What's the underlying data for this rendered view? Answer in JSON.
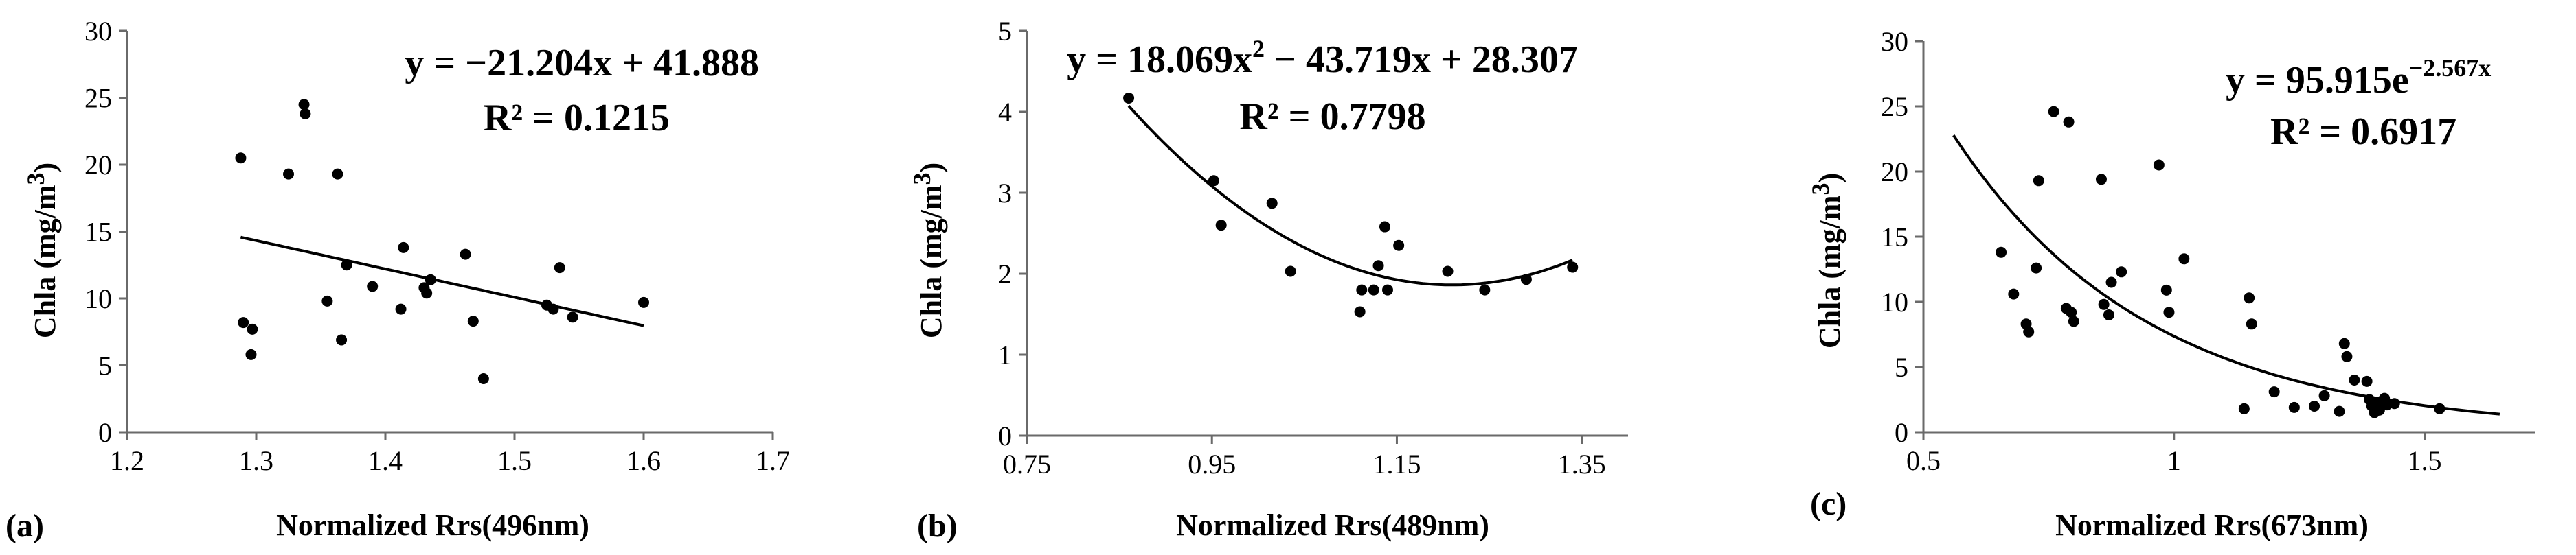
{
  "chart_data": [
    {
      "type": "scatter",
      "panel_label": "(a)",
      "xlabel": "Normalized Rrs(496nm)",
      "ylabel": "Chla (mg/m",
      "ylabel_sup": "3",
      "ylabel_end": ")",
      "xlim": [
        1.2,
        1.7
      ],
      "ylim": [
        0,
        30
      ],
      "xticks": [
        1.2,
        1.3,
        1.4,
        1.5,
        1.6,
        1.7
      ],
      "xtick_labels": [
        "1.2",
        "1.3",
        "1.4",
        "1.5",
        "1.6",
        "1.7"
      ],
      "yticks": [
        0,
        5,
        10,
        15,
        20,
        25,
        30
      ],
      "ytick_labels": [
        "0",
        "5",
        "10",
        "15",
        "20",
        "25",
        "30"
      ],
      "equation_main": "y = −21.204x + 41.888",
      "r2_text": "R² = 0.1215",
      "fit": {
        "model": "linear",
        "a": -21.204,
        "b": 41.888,
        "x_range": [
          1.288,
          1.6
        ]
      },
      "points": [
        [
          1.288,
          20.5
        ],
        [
          1.29,
          8.2
        ],
        [
          1.296,
          5.8
        ],
        [
          1.297,
          7.7
        ],
        [
          1.325,
          19.3
        ],
        [
          1.337,
          24.5
        ],
        [
          1.338,
          23.8
        ],
        [
          1.355,
          9.8
        ],
        [
          1.363,
          19.3
        ],
        [
          1.366,
          6.9
        ],
        [
          1.37,
          12.5
        ],
        [
          1.39,
          10.9
        ],
        [
          1.412,
          9.2
        ],
        [
          1.414,
          13.8
        ],
        [
          1.43,
          10.8
        ],
        [
          1.432,
          10.4
        ],
        [
          1.435,
          11.4
        ],
        [
          1.462,
          13.3
        ],
        [
          1.468,
          8.3
        ],
        [
          1.476,
          4.0
        ],
        [
          1.525,
          9.5
        ],
        [
          1.53,
          9.2
        ],
        [
          1.535,
          12.3
        ],
        [
          1.545,
          8.6
        ],
        [
          1.6,
          9.7
        ]
      ]
    },
    {
      "type": "scatter",
      "panel_label": "(b)",
      "xlabel": "Normalized Rrs(489nm)",
      "ylabel": "Chla (mg/m",
      "ylabel_sup": "3",
      "ylabel_end": ")",
      "xlim": [
        0.75,
        1.4
      ],
      "ylim": [
        0,
        5
      ],
      "xticks": [
        0.75,
        0.95,
        1.15,
        1.35
      ],
      "xtick_labels": [
        "0.75",
        "0.95",
        "1.15",
        "1.35"
      ],
      "yticks": [
        0,
        1,
        2,
        3,
        4,
        5
      ],
      "ytick_labels": [
        "0",
        "1",
        "2",
        "3",
        "4",
        "5"
      ],
      "equation_main": "y = 18.069x",
      "equation_sup": "2",
      "equation_rest": " − 43.719x + 28.307",
      "r2_text": "R² = 0.7798",
      "fit": {
        "model": "quadratic",
        "a": 18.069,
        "b": -43.719,
        "c": 28.307,
        "x_range": [
          0.86,
          1.34
        ]
      },
      "points": [
        [
          0.86,
          4.17
        ],
        [
          0.952,
          3.15
        ],
        [
          0.96,
          2.6
        ],
        [
          1.015,
          2.87
        ],
        [
          1.035,
          2.03
        ],
        [
          1.11,
          1.53
        ],
        [
          1.112,
          1.8
        ],
        [
          1.125,
          1.8
        ],
        [
          1.13,
          2.1
        ],
        [
          1.137,
          2.58
        ],
        [
          1.14,
          1.8
        ],
        [
          1.152,
          2.35
        ],
        [
          1.205,
          2.03
        ],
        [
          1.245,
          1.8
        ],
        [
          1.29,
          1.93
        ],
        [
          1.34,
          2.08
        ]
      ]
    },
    {
      "type": "scatter",
      "panel_label": "(c)",
      "xlabel": "Normalized Rrs(673nm)",
      "ylabel": "Chla (mg/m",
      "ylabel_sup": "3",
      "ylabel_end": ")",
      "xlim": [
        0.5,
        1.72
      ],
      "ylim": [
        0,
        30
      ],
      "xticks": [
        0.5,
        1.0,
        1.5
      ],
      "xtick_labels": [
        "0.5",
        "1",
        "1.5"
      ],
      "yticks": [
        0,
        5,
        10,
        15,
        20,
        25,
        30
      ],
      "ytick_labels": [
        "0",
        "5",
        "10",
        "15",
        "20",
        "25",
        "30"
      ],
      "equation_main": "y = 95.915e",
      "equation_sup": "−2.567x",
      "r2_text": "R² = 0.6917",
      "fit": {
        "model": "exponential",
        "a": 95.915,
        "b": -2.567,
        "x_range": [
          0.56,
          1.65
        ]
      },
      "points": [
        [
          0.655,
          13.8
        ],
        [
          0.68,
          10.6
        ],
        [
          0.705,
          8.3
        ],
        [
          0.71,
          7.7
        ],
        [
          0.725,
          12.6
        ],
        [
          0.73,
          19.3
        ],
        [
          0.76,
          24.6
        ],
        [
          0.785,
          9.5
        ],
        [
          0.79,
          23.8
        ],
        [
          0.795,
          9.2
        ],
        [
          0.8,
          8.5
        ],
        [
          0.855,
          19.4
        ],
        [
          0.86,
          9.8
        ],
        [
          0.87,
          9.0
        ],
        [
          0.875,
          11.5
        ],
        [
          0.895,
          12.3
        ],
        [
          0.97,
          20.5
        ],
        [
          0.985,
          10.9
        ],
        [
          0.99,
          9.2
        ],
        [
          1.02,
          13.3
        ],
        [
          1.14,
          1.8
        ],
        [
          1.15,
          10.3
        ],
        [
          1.155,
          8.3
        ],
        [
          1.2,
          3.1
        ],
        [
          1.24,
          1.9
        ],
        [
          1.28,
          2.0
        ],
        [
          1.3,
          2.8
        ],
        [
          1.33,
          1.6
        ],
        [
          1.34,
          6.8
        ],
        [
          1.345,
          5.8
        ],
        [
          1.36,
          4.0
        ],
        [
          1.385,
          3.9
        ],
        [
          1.39,
          2.5
        ],
        [
          1.395,
          2.0
        ],
        [
          1.4,
          1.5
        ],
        [
          1.405,
          2.3
        ],
        [
          1.41,
          1.7
        ],
        [
          1.415,
          2.4
        ],
        [
          1.42,
          2.6
        ],
        [
          1.425,
          2.1
        ],
        [
          1.44,
          2.2
        ],
        [
          1.53,
          1.8
        ]
      ]
    }
  ]
}
